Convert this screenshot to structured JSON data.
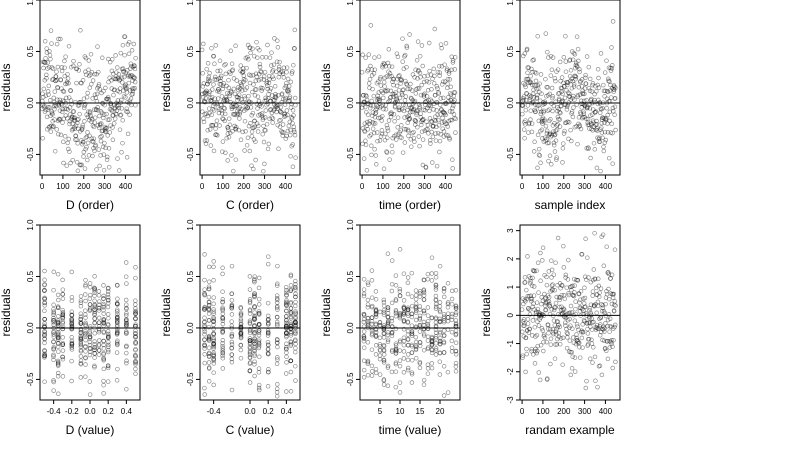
{
  "chart_data": [
    {
      "type": "scatter",
      "xlabel": "D (order)",
      "ylabel": "residuals",
      "xlim": [
        -10,
        470
      ],
      "ylim": [
        -0.7,
        1.0
      ],
      "xticks": [
        0,
        100,
        200,
        300,
        400
      ],
      "xticklabels": [
        "0",
        "100",
        "200",
        "300",
        "400"
      ],
      "yticks": [
        -0.5,
        0.0,
        0.5,
        1.0
      ],
      "yticklabels": [
        "-0.5",
        "0.0",
        "0.5",
        "1.0"
      ],
      "hline": 0,
      "npoints": 450,
      "seed": 11,
      "pattern": "u-shape",
      "ysd": 0.26
    },
    {
      "type": "scatter",
      "xlabel": "C (order)",
      "ylabel": "residuals",
      "xlim": [
        -10,
        470
      ],
      "ylim": [
        -0.7,
        1.0
      ],
      "xticks": [
        0,
        100,
        200,
        300,
        400
      ],
      "xticklabels": [
        "0",
        "100",
        "200",
        "300",
        "400"
      ],
      "yticks": [
        -0.5,
        0.0,
        0.5,
        1.0
      ],
      "yticklabels": [
        "-0.5",
        "0.0",
        "0.5",
        "1.0"
      ],
      "hline": 0,
      "npoints": 450,
      "seed": 23,
      "pattern": "random",
      "ysd": 0.26
    },
    {
      "type": "scatter",
      "xlabel": "time (order)",
      "ylabel": "residuals",
      "xlim": [
        -10,
        470
      ],
      "ylim": [
        -0.7,
        1.0
      ],
      "xticks": [
        0,
        100,
        200,
        300,
        400
      ],
      "xticklabels": [
        "0",
        "100",
        "200",
        "300",
        "400"
      ],
      "yticks": [
        -0.5,
        0.0,
        0.5,
        1.0
      ],
      "yticklabels": [
        "-0.5",
        "0.0",
        "0.5",
        "1.0"
      ],
      "hline": 0,
      "npoints": 450,
      "seed": 37,
      "pattern": "random",
      "ysd": 0.26
    },
    {
      "type": "scatter",
      "xlabel": "sample index",
      "ylabel": "residuals",
      "xlim": [
        -10,
        470
      ],
      "ylim": [
        -0.7,
        1.0
      ],
      "xticks": [
        0,
        100,
        200,
        300,
        400
      ],
      "xticklabels": [
        "0",
        "100",
        "200",
        "300",
        "400"
      ],
      "yticks": [
        -0.5,
        0.0,
        0.5,
        1.0
      ],
      "yticklabels": [
        "-0.5",
        "0.0",
        "0.5",
        "1.0"
      ],
      "hline": 0,
      "npoints": 450,
      "seed": 41,
      "pattern": "wave",
      "ysd": 0.24
    },
    {
      "type": "scatter",
      "xlabel": "D (value)",
      "ylabel": "residuals",
      "xlim": [
        -0.55,
        0.55
      ],
      "ylim": [
        -0.7,
        1.0
      ],
      "xticks": [
        -0.4,
        -0.2,
        0.0,
        0.2,
        0.4
      ],
      "xticklabels": [
        "-0.4",
        "-0.2",
        "0.0",
        "0.2",
        "0.4"
      ],
      "yticks": [
        -0.5,
        0.0,
        0.5,
        1.0
      ],
      "yticklabels": [
        "-0.5",
        "0.0",
        "0.5",
        "1.0"
      ],
      "hline": 0,
      "npoints": 450,
      "seed": 53,
      "pattern": "clustered",
      "ysd": 0.24,
      "xrange": [
        -0.5,
        0.5
      ],
      "clusters": [
        -0.5,
        -0.4,
        -0.35,
        -0.3,
        -0.2,
        -0.1,
        -0.05,
        0.0,
        0.05,
        0.1,
        0.15,
        0.2,
        0.3,
        0.4,
        0.5
      ]
    },
    {
      "type": "scatter",
      "xlabel": "C (value)",
      "ylabel": "residuals",
      "xlim": [
        -0.55,
        0.55
      ],
      "ylim": [
        -0.7,
        1.0
      ],
      "xticks": [
        -0.4,
        0.0,
        0.2,
        0.4
      ],
      "xticklabels": [
        "-0.4",
        "0.0",
        "0.2",
        "0.4"
      ],
      "yticks": [
        -0.5,
        0.0,
        0.5,
        1.0
      ],
      "yticklabels": [
        "-0.5",
        "0.0",
        "0.5",
        "1.0"
      ],
      "hline": 0,
      "npoints": 450,
      "seed": 67,
      "pattern": "clustered",
      "ysd": 0.26,
      "xrange": [
        -0.5,
        0.5
      ],
      "clusters": [
        -0.5,
        -0.45,
        -0.4,
        -0.3,
        -0.2,
        -0.1,
        0.0,
        0.05,
        0.1,
        0.2,
        0.3,
        0.4,
        0.45,
        0.5
      ]
    },
    {
      "type": "scatter",
      "xlabel": "time (value)",
      "ylabel": "residuals",
      "xlim": [
        0,
        25
      ],
      "ylim": [
        -0.7,
        1.0
      ],
      "xticks": [
        5,
        10,
        15,
        20
      ],
      "xticklabels": [
        "5",
        "10",
        "15",
        "20"
      ],
      "yticks": [
        -0.5,
        0.0,
        0.5,
        1.0
      ],
      "yticklabels": [
        "-0.5",
        "0.0",
        "0.5",
        "1.0"
      ],
      "hline": 0,
      "npoints": 450,
      "seed": 79,
      "pattern": "clustered",
      "ysd": 0.26,
      "xrange": [
        1,
        24
      ],
      "clusters": [
        1,
        2,
        3,
        4,
        5,
        6,
        7,
        8,
        9,
        10,
        11,
        12,
        13,
        14,
        15,
        16,
        17,
        18,
        19,
        20,
        21,
        22,
        23,
        24
      ]
    },
    {
      "type": "scatter",
      "xlabel": "randam example",
      "ylabel": "residuals",
      "xlim": [
        -10,
        470
      ],
      "ylim": [
        -3.0,
        3.2
      ],
      "xticks": [
        0,
        100,
        200,
        300,
        400
      ],
      "xticklabels": [
        "0",
        "100",
        "200",
        "300",
        "400"
      ],
      "yticks": [
        -3,
        -2,
        -1,
        0,
        1,
        2,
        3
      ],
      "yticklabels": [
        "-3",
        "-2",
        "-1",
        "0",
        "1",
        "2",
        "3"
      ],
      "hline": 0,
      "npoints": 450,
      "seed": 97,
      "pattern": "random",
      "ysd": 1.0
    }
  ]
}
